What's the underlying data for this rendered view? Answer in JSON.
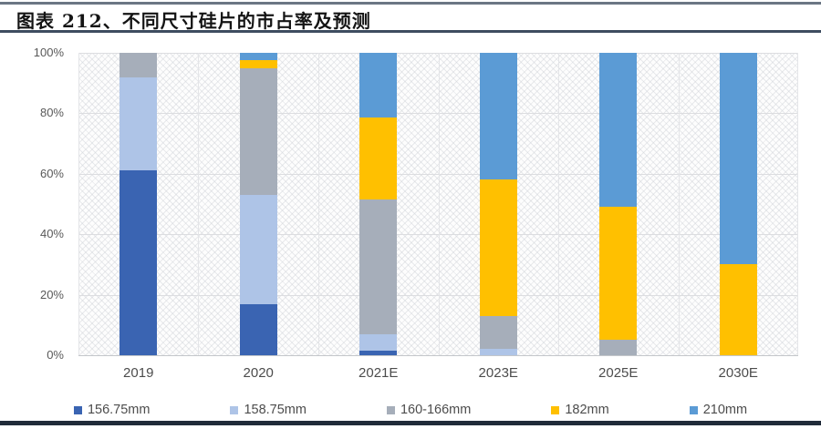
{
  "header": {
    "title": "图表 212、不同尺寸硅片的市占率及预测"
  },
  "chart_data": {
    "type": "bar",
    "stacked": true,
    "title": "图表 212、不同尺寸硅片的市占率及预测",
    "categories": [
      "2019",
      "2020",
      "2021E",
      "2023E",
      "2025E",
      "2030E"
    ],
    "series": [
      {
        "name": "156.75mm",
        "color": "#3a64b2",
        "values": [
          61,
          17,
          1.5,
          0,
          0,
          0
        ]
      },
      {
        "name": "158.75mm",
        "color": "#aec4e7",
        "values": [
          31,
          36,
          5.5,
          2,
          0,
          0
        ]
      },
      {
        "name": "160-166mm",
        "color": "#a6aeba",
        "values": [
          8,
          42,
          44.5,
          11,
          5,
          0
        ]
      },
      {
        "name": "182mm",
        "color": "#ffc000",
        "values": [
          0,
          2.5,
          27,
          45,
          44,
          30
        ]
      },
      {
        "name": "210mm",
        "color": "#5b9bd5",
        "values": [
          0,
          2.5,
          21.5,
          42,
          51,
          70
        ]
      }
    ],
    "xlabel": "",
    "ylabel": "",
    "ylim": [
      0,
      100
    ],
    "yticks": [
      "0%",
      "20%",
      "40%",
      "60%",
      "80%",
      "100%"
    ],
    "grid": true,
    "plot_background": "diagonal-hatch",
    "legend_position": "bottom"
  }
}
